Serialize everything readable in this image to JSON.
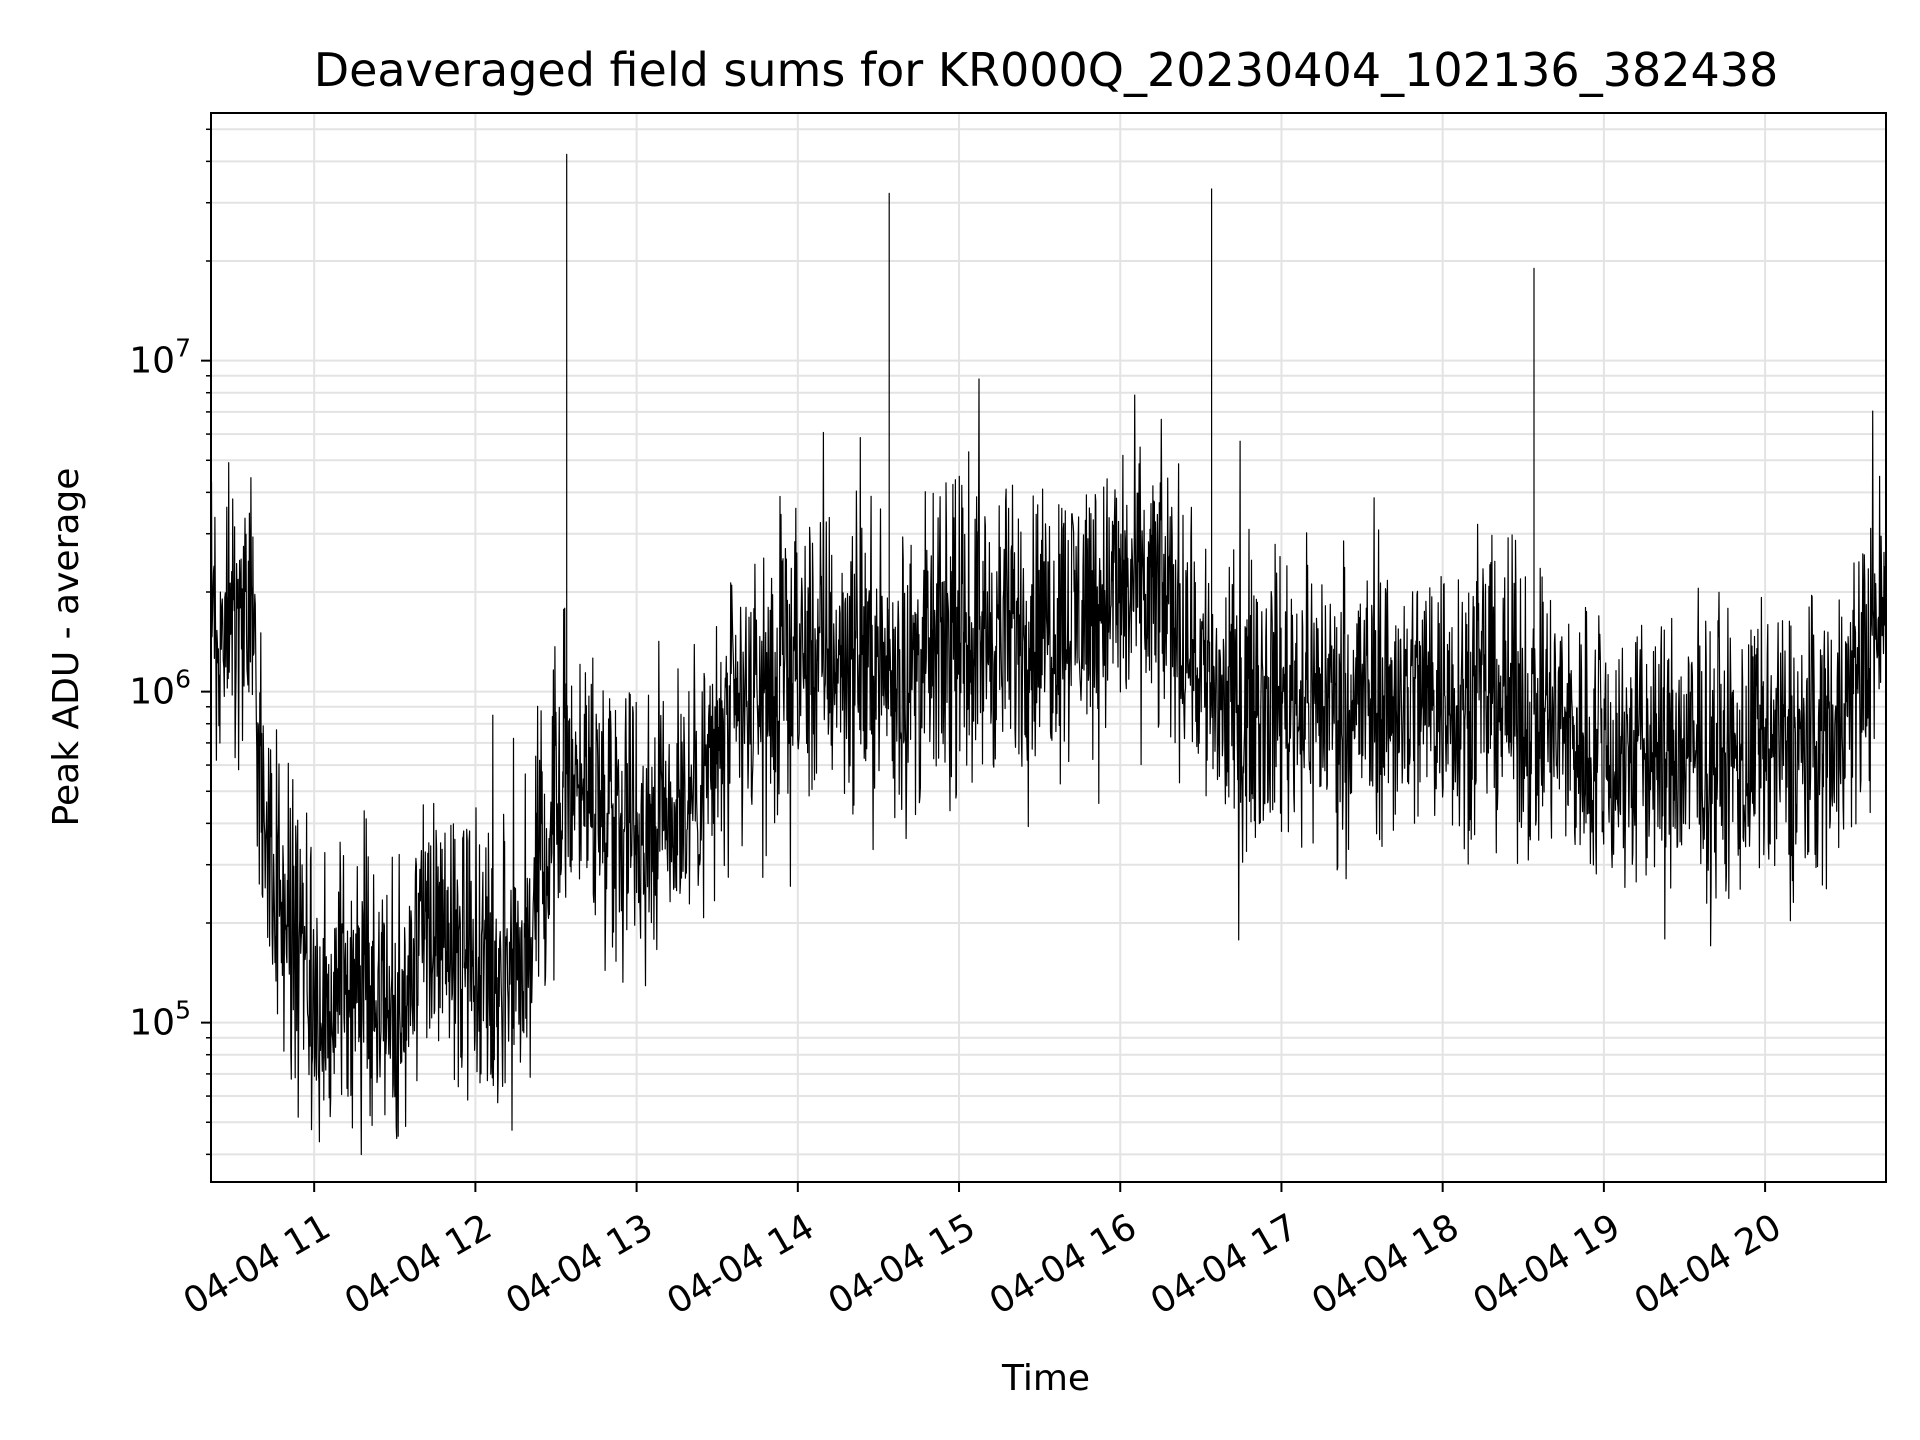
{
  "chart_data": {
    "type": "line",
    "title": "Deaveraged field sums for KR000Q_20230404_102136_382438",
    "xlabel": "Time",
    "ylabel": "Peak ADU - average",
    "y_scale": "log",
    "ylim": [
      33000,
      56000000
    ],
    "xlim": [
      "2023-04-04 10:21:36",
      "2023-04-04 20:45:00"
    ],
    "x_tick_labels": [
      "04-04 11",
      "04-04 12",
      "04-04 13",
      "04-04 14",
      "04-04 15",
      "04-04 16",
      "04-04 17",
      "04-04 18",
      "04-04 19",
      "04-04 20"
    ],
    "y_tick_labels": [
      {
        "base": "10",
        "exp": "5"
      },
      {
        "base": "10",
        "exp": "6"
      },
      {
        "base": "10",
        "exp": "7"
      }
    ],
    "grid": true,
    "line_color": "#000000",
    "series": [
      {
        "x": [
          "10:22",
          "10:30",
          "10:36",
          "10:42",
          "10:48",
          "10:54",
          "11:00",
          "11:10",
          "11:20",
          "11:30",
          "11:40",
          "11:50",
          "12:00",
          "12:10",
          "12:20",
          "12:30",
          "12:34",
          "12:36",
          "12:40",
          "12:50",
          "13:00",
          "13:10",
          "13:20",
          "13:30",
          "13:40",
          "13:50",
          "14:00",
          "14:10",
          "14:20",
          "14:30",
          "14:34",
          "14:40",
          "14:50",
          "15:00",
          "15:10",
          "15:20",
          "15:30",
          "15:40",
          "15:50",
          "16:00",
          "16:10",
          "16:20",
          "16:30",
          "16:34",
          "16:40",
          "16:50",
          "17:00",
          "17:20",
          "17:40",
          "18:00",
          "18:20",
          "18:34",
          "18:40",
          "19:00",
          "19:20",
          "19:40",
          "20:00",
          "20:20",
          "20:30",
          "20:40",
          "20:45"
        ],
        "y": [
          1600000,
          1700000,
          1900000,
          380000,
          250000,
          160000,
          110000,
          120000,
          130000,
          110000,
          170000,
          200000,
          150000,
          150000,
          180000,
          500000,
          42000000,
          600000,
          550000,
          450000,
          400000,
          450000,
          500000,
          650000,
          900000,
          1000000,
          1200000,
          1300000,
          1300000,
          1200000,
          32000000,
          1100000,
          1300000,
          1400000,
          1500000,
          1500000,
          1600000,
          1700000,
          1900000,
          2000000,
          2000000,
          1800000,
          1200000,
          33000000,
          900000,
          950000,
          1000000,
          950000,
          950000,
          1000000,
          1000000,
          19000000,
          800000,
          650000,
          650000,
          600000,
          650000,
          700000,
          900000,
          1400000,
          1900000
        ]
      }
    ]
  }
}
